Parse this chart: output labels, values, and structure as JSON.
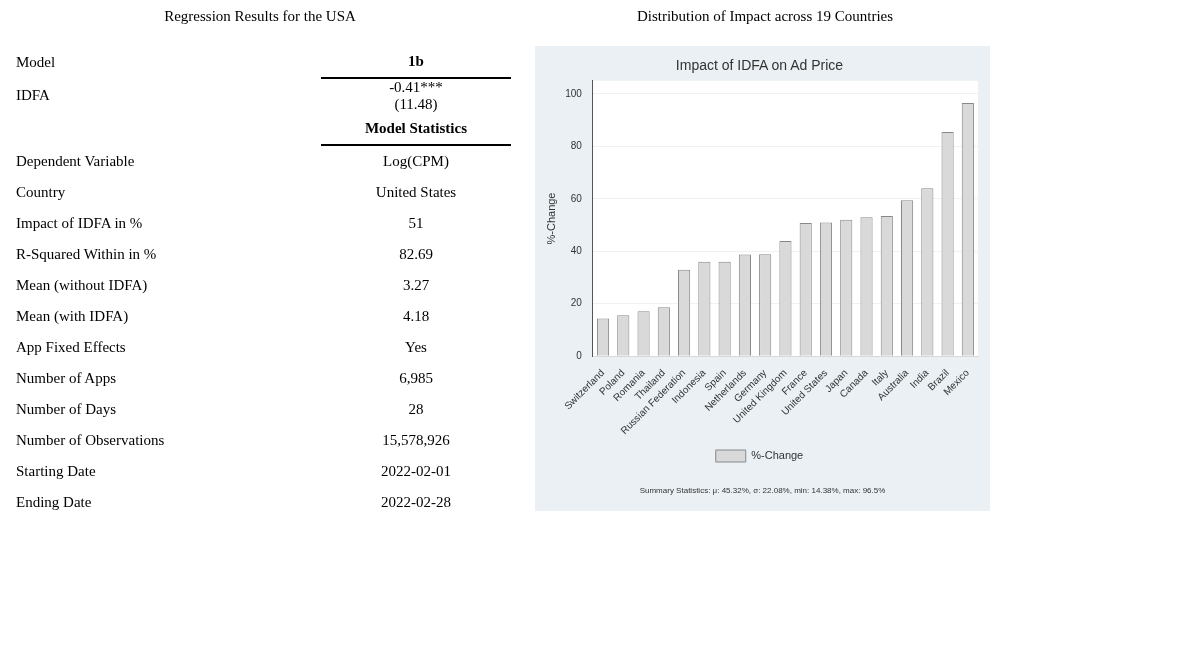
{
  "chart_data": [
    {
      "type": "other",
      "title": "Regression Results for the USA",
      "categories": [
        "Model",
        "IDFA",
        null,
        "Dependent Variable",
        "Country",
        "Impact of IDFA in %",
        "R-Squared Within in %",
        "Mean (without IDFA)",
        "Mean (with IDFA)",
        "App Fixed Effects",
        "Number of Apps",
        "Number of Days",
        "Number of Observations",
        "Starting Date",
        "Ending Date"
      ],
      "value_labels": [
        "1b",
        "-0.41***\n(11.48)",
        "Model Statistics",
        "Log(CPM)",
        "United States",
        "51",
        "82.69",
        "3.27",
        "4.18",
        "Yes",
        "6,985",
        "28",
        "15,578,926",
        "2022-02-01",
        "2022-02-28"
      ]
    },
    {
      "type": "bar",
      "title": "Distribution of Impact across 19 Countries",
      "subtitle": "Impact of IDFA on Ad Price",
      "ylabel": "%-Change",
      "categories": [
        "Switzerland",
        "Poland",
        "Romania",
        "Thailand",
        "Russian Federation",
        "Indonesia",
        "Spain",
        "Netherlands",
        "Germany",
        "United Kingdom",
        "France",
        "United States",
        "Japan",
        "Canada",
        "Italy",
        "Australia",
        "India",
        "Brazil",
        "Mexico"
      ],
      "series": [
        {
          "name": "%-Change",
          "color": "#d9d9d9",
          "values": [
            14.4,
            15.6,
            17.1,
            18.7,
            33,
            36,
            36,
            38.8,
            38.9,
            43.9,
            50.8,
            51,
            52,
            53,
            53.5,
            59.5,
            64,
            85.5,
            96.5
          ]
        }
      ],
      "ylim": [
        0,
        105
      ],
      "yticks": [
        0,
        20,
        40,
        60,
        80,
        100
      ],
      "grid": "y",
      "legend": "bottom",
      "annotations": [
        "Summary Statistics: μ: 45.32%, σ: 22.08%, min: 14.38%, max: 96.5%"
      ]
    }
  ]
}
